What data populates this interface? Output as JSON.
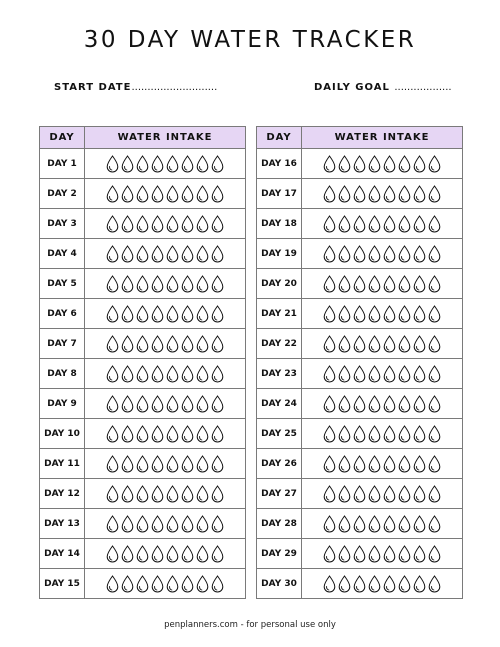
{
  "title": "30 DAY WATER TRACKER",
  "fields": {
    "start_label": "START DATE",
    "start_value": "...........................",
    "goal_label": "DAILY GOAL",
    "goal_value": ".................."
  },
  "table_headers": {
    "day": "DAY",
    "intake": "WATER INTAKE"
  },
  "drops_per_day": 8,
  "drop_icon": "water-drop-icon",
  "header_color": "#e6d6f4",
  "days_left": [
    "DAY 1",
    "DAY 2",
    "DAY 3",
    "DAY 4",
    "DAY 5",
    "DAY 6",
    "DAY 7",
    "DAY 8",
    "DAY 9",
    "DAY 10",
    "DAY 11",
    "DAY 12",
    "DAY 13",
    "DAY 14",
    "DAY 15"
  ],
  "days_right": [
    "DAY 16",
    "DAY 17",
    "DAY 18",
    "DAY 19",
    "DAY 20",
    "DAY 21",
    "DAY 22",
    "DAY 23",
    "DAY 24",
    "DAY 25",
    "DAY 26",
    "DAY 27",
    "DAY 28",
    "DAY 29",
    "DAY 30"
  ],
  "footer": "penplanners.com - for personal use only"
}
